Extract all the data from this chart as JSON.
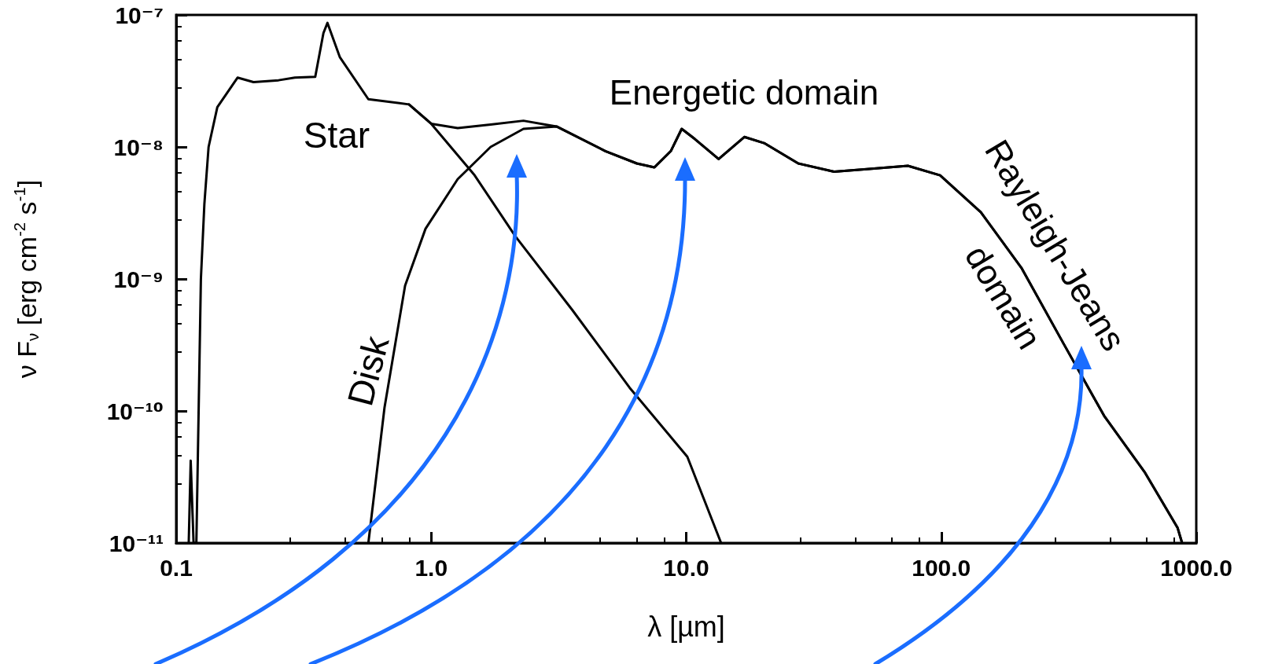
{
  "chart_data": {
    "type": "line",
    "xlabel": "λ [µm]",
    "ylabel": "ν F$_{ν}$ [erg cm$^{-2}$ s$^{-1}$]",
    "log": "xy",
    "marker": "none",
    "line_style": "solid",
    "xlim": [
      0.1,
      1000
    ],
    "xticks": [
      {
        "value": 0.1,
        "label": "0.1"
      },
      {
        "value": 1,
        "label": "1.0"
      },
      {
        "value": 10,
        "label": "10.0"
      },
      {
        "value": 100,
        "label": "100.0"
      },
      {
        "value": 1000,
        "label": "1000.0"
      }
    ],
    "ylim": [
      1e-11,
      1e-07
    ],
    "yticks": [
      {
        "value": 1e-11,
        "label": "10⁻¹¹"
      },
      {
        "value": 1e-10,
        "label": "10⁻¹⁰"
      },
      {
        "value": 1e-09,
        "label": "10⁻⁹"
      },
      {
        "value": 1e-08,
        "label": "10⁻⁸"
      },
      {
        "value": 1e-07,
        "label": "10⁻⁷"
      }
    ],
    "annotations": [
      "Energetic domain",
      "Rayleigh-Jeans domain"
    ],
    "series": [
      {
        "name": "Star",
        "color": "#000000",
        "x": [
          0.112,
          0.114,
          0.117,
          0.12,
          0.125,
          0.129,
          0.134,
          0.145,
          0.174,
          0.201,
          0.252,
          0.292,
          0.351,
          0.378,
          0.392,
          0.438,
          0.567,
          0.818,
          1.0,
          1.48,
          2.14,
          3.58,
          6.0,
          10.1,
          13.7
        ],
        "values": [
          1e-11,
          4.2e-11,
          1e-11,
          1e-11,
          1e-09,
          3.7e-09,
          1e-08,
          2e-08,
          3.35e-08,
          3.1e-08,
          3.2e-08,
          3.35e-08,
          3.4e-08,
          7.3e-08,
          8.7e-08,
          4.8e-08,
          2.3e-08,
          2.1e-08,
          1.5e-08,
          6.1e-09,
          2.1e-09,
          5.8e-10,
          1.5e-10,
          4.5e-11,
          1e-11
        ]
      },
      {
        "name": "Disk",
        "color": "#000000",
        "x": [
          0.567,
          0.656,
          0.79,
          0.95,
          1.27,
          1.71,
          2.3,
          3.1,
          4.82,
          6.4,
          7.5,
          8.7,
          9.6,
          10.8,
          13.4,
          16.9,
          20.2,
          27.5,
          38,
          51,
          74,
          99,
          143,
          207,
          300,
          435,
          630,
          845,
          880
        ],
        "values": [
          1e-11,
          1.06e-10,
          8.9e-10,
          2.4e-09,
          5.7e-09,
          1e-08,
          1.37e-08,
          1.43e-08,
          9.3e-09,
          7.5e-09,
          7e-09,
          9.3e-09,
          1.37e-08,
          1.15e-08,
          8.1e-09,
          1.19e-08,
          1.07e-08,
          7.5e-09,
          6.5e-09,
          6.8e-09,
          7.2e-09,
          6.1e-09,
          3.2e-09,
          1.2e-09,
          3.3e-10,
          9.2e-11,
          3.4e-11,
          1.3e-11,
          1e-11
        ]
      },
      {
        "color": "#000000",
        "x": [
          0.818,
          1.0,
          1.27,
          1.71,
          2.3,
          3.1,
          4.82,
          6.4,
          7.5,
          8.7,
          9.6,
          10.8,
          13.4,
          16.9,
          20.2,
          27.5,
          38,
          51,
          74,
          99,
          143,
          207,
          300,
          435,
          630,
          845,
          880
        ],
        "values": [
          2.1e-08,
          1.5e-08,
          1.39e-08,
          1.48e-08,
          1.58e-08,
          1.43e-08,
          9.3e-09,
          7.5e-09,
          7e-09,
          9.3e-09,
          1.37e-08,
          1.15e-08,
          8.1e-09,
          1.19e-08,
          1.07e-08,
          7.5e-09,
          6.5e-09,
          6.8e-09,
          7.2e-09,
          6.1e-09,
          3.2e-09,
          1.2e-09,
          3.3e-10,
          9.2e-11,
          3.4e-11,
          1.3e-11,
          1e-11
        ]
      }
    ]
  }
}
